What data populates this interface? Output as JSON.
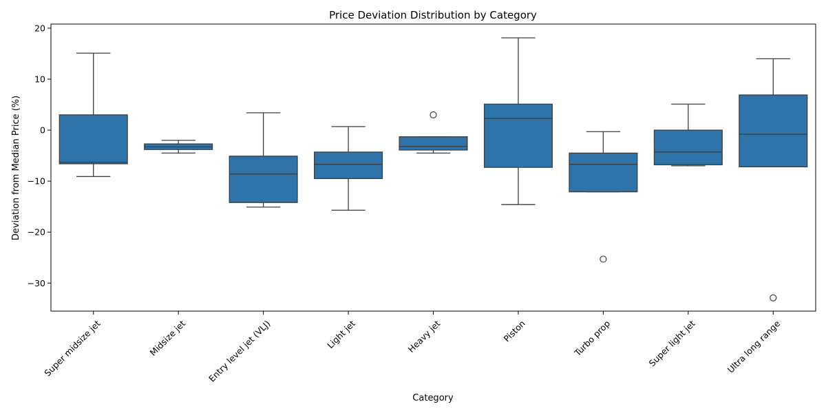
{
  "chart_data": {
    "type": "box",
    "title": "Price Deviation Distribution by Category",
    "xlabel": "Category",
    "ylabel": "Deviation from Median Price (%)",
    "ylim": [
      -35.5,
      20.8
    ],
    "yticks": [
      20,
      10,
      0,
      -10,
      -20,
      -30
    ],
    "grid": false,
    "legend": "none",
    "box_color": "#2e74aa",
    "line_color": "#3d3d3d",
    "categories": [
      "Super midsize jet",
      "Midsize jet",
      "Entry level jet (VLJ)",
      "Light jet",
      "Heavy jet",
      "Piston",
      "Turbo prop",
      "Super light jet",
      "Ultra long range"
    ],
    "boxes": [
      {
        "whisker_low": -9.1,
        "q1": -6.6,
        "median": -6.3,
        "q3": 3.0,
        "whisker_high": 15.1,
        "outliers": []
      },
      {
        "whisker_low": -4.5,
        "q1": -3.8,
        "median": -3.3,
        "q3": -2.7,
        "whisker_high": -2.0,
        "outliers": []
      },
      {
        "whisker_low": -15.1,
        "q1": -14.2,
        "median": -8.6,
        "q3": -5.1,
        "whisker_high": 3.4,
        "outliers": []
      },
      {
        "whisker_low": -15.7,
        "q1": -9.5,
        "median": -6.7,
        "q3": -4.3,
        "whisker_high": 0.7,
        "outliers": []
      },
      {
        "whisker_low": -4.5,
        "q1": -3.9,
        "median": -3.2,
        "q3": -1.3,
        "whisker_high": -1.3,
        "outliers": [
          3.0
        ]
      },
      {
        "whisker_low": -14.6,
        "q1": -7.3,
        "median": 2.3,
        "q3": 5.1,
        "whisker_high": 18.1,
        "outliers": []
      },
      {
        "whisker_low": -12.1,
        "q1": -12.1,
        "median": -6.7,
        "q3": -4.5,
        "whisker_high": -0.3,
        "outliers": [
          -25.3
        ]
      },
      {
        "whisker_low": -7.0,
        "q1": -6.8,
        "median": -4.3,
        "q3": 0.0,
        "whisker_high": 5.1,
        "outliers": []
      },
      {
        "whisker_low": -7.2,
        "q1": -7.2,
        "median": -0.8,
        "q3": 6.9,
        "whisker_high": 14.0,
        "outliers": [
          -32.9
        ]
      }
    ]
  }
}
